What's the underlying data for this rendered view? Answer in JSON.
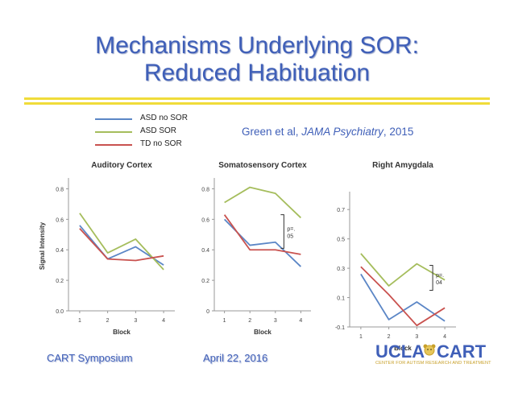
{
  "slide": {
    "title_line1": "Mechanisms Underlying SOR:",
    "title_line2": "Reduced Habituation",
    "citation_prefix": "Green et al, ",
    "citation_journal": "JAMA Psychiatry",
    "citation_suffix": ", 2015",
    "footer_left": "CART Symposium",
    "footer_date": "April 22, 2016",
    "logo_ucla": "UCLA",
    "logo_cart": "CART",
    "logo_tagline": "CENTER FOR AUTISM RESEARCH AND TREATMENT"
  },
  "legend": [
    {
      "label": "ASD no SOR",
      "color": "#5b86c6"
    },
    {
      "label": "ASD SOR",
      "color": "#a5bd5c"
    },
    {
      "label": "TD no SOR",
      "color": "#c9524f"
    }
  ],
  "chart_data": [
    {
      "type": "line",
      "title": "Auditory Cortex",
      "xlabel": "Block",
      "ylabel": "Signal Intensity",
      "x": [
        1,
        2,
        3,
        4
      ],
      "xlim": [
        0.6,
        4.4
      ],
      "ylim": [
        0,
        0.85
      ],
      "yticks": [
        0.0,
        0.2,
        0.4,
        0.6,
        0.8
      ],
      "ytick_labels": [
        "0.0",
        "0.2",
        "0.4",
        "0.6",
        "0.8"
      ],
      "series": [
        {
          "name": "ASD no SOR",
          "color": "#5b86c6",
          "values": [
            0.56,
            0.34,
            0.42,
            0.3
          ]
        },
        {
          "name": "ASD SOR",
          "color": "#a5bd5c",
          "values": [
            0.64,
            0.38,
            0.47,
            0.27
          ]
        },
        {
          "name": "TD no SOR",
          "color": "#c9524f",
          "values": [
            0.54,
            0.34,
            0.33,
            0.36
          ]
        }
      ],
      "annotation": null
    },
    {
      "type": "line",
      "title": "Somatosensory Cortex",
      "xlabel": "Block",
      "ylabel": "",
      "x": [
        1,
        2,
        3,
        4
      ],
      "xlim": [
        0.6,
        4.4
      ],
      "ylim": [
        0,
        0.85
      ],
      "yticks": [
        0,
        0.2,
        0.4,
        0.6,
        0.8
      ],
      "ytick_labels": [
        "0",
        "0.2",
        "0.4",
        "0.6",
        "0.8"
      ],
      "series": [
        {
          "name": "ASD no SOR",
          "color": "#5b86c6",
          "values": [
            0.6,
            0.43,
            0.45,
            0.29
          ]
        },
        {
          "name": "ASD SOR",
          "color": "#a5bd5c",
          "values": [
            0.71,
            0.81,
            0.77,
            0.61
          ]
        },
        {
          "name": "TD no SOR",
          "color": "#c9524f",
          "values": [
            0.63,
            0.4,
            0.4,
            0.37
          ]
        }
      ],
      "annotation": {
        "text_line1": "p=.",
        "text_line2": "05",
        "y_from": 0.63,
        "y_to": 0.41
      }
    },
    {
      "type": "line",
      "title": "Right Amygdala",
      "xlabel": "Block",
      "ylabel": "",
      "x": [
        1,
        2,
        3,
        4
      ],
      "xlim": [
        0.6,
        4.4
      ],
      "ylim": [
        -0.1,
        0.8
      ],
      "yticks": [
        -0.1,
        0.1,
        0.3,
        0.5,
        0.7
      ],
      "ytick_labels": [
        "-0.1",
        "0.1",
        "0.3",
        "0.5",
        "0.7"
      ],
      "series": [
        {
          "name": "ASD no SOR",
          "color": "#5b86c6",
          "values": [
            0.26,
            -0.05,
            0.07,
            -0.06
          ]
        },
        {
          "name": "ASD SOR",
          "color": "#a5bd5c",
          "values": [
            0.4,
            0.18,
            0.33,
            0.22
          ]
        },
        {
          "name": "TD no SOR",
          "color": "#c9524f",
          "values": [
            0.31,
            0.12,
            -0.09,
            0.03
          ]
        }
      ],
      "annotation": {
        "text_line1": "p=.",
        "text_line2": "04",
        "y_from": 0.32,
        "y_to": 0.15
      }
    }
  ]
}
